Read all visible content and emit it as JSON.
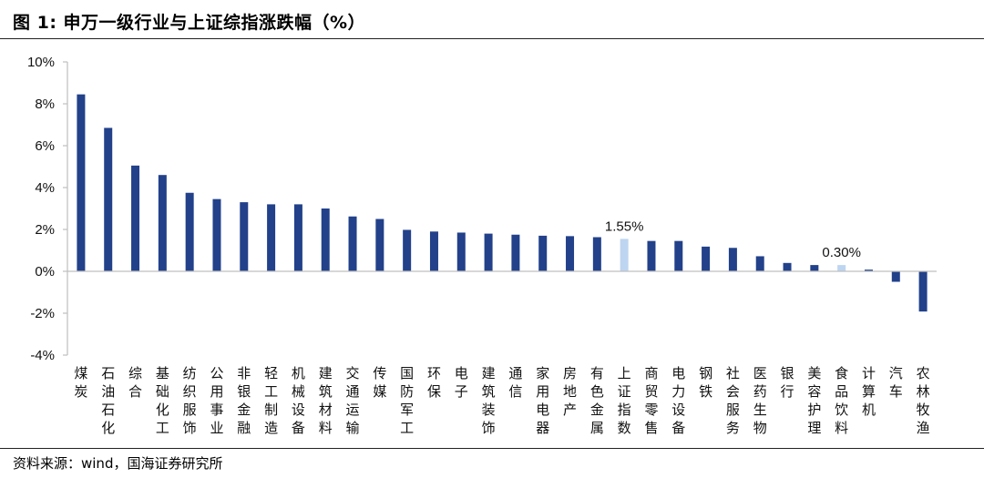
{
  "title": "图 1:  申万一级行业与上证综指涨跌幅（%）",
  "source": "资料来源：wind，国海证券研究所",
  "colors": {
    "bar": "#22418A",
    "highlight": "#BDD5F0",
    "axis": "#BFBFBF"
  },
  "chart_data": {
    "type": "bar",
    "title": "",
    "xlabel": "",
    "ylabel": "",
    "ylim": [
      -4,
      10
    ],
    "yticks": [
      10,
      8,
      6,
      4,
      2,
      0,
      -2,
      -4
    ],
    "ytick_labels": [
      "10%",
      "8%",
      "6%",
      "4%",
      "2%",
      "0%",
      "-2%",
      "-4%"
    ],
    "grid": false,
    "legend": "none",
    "categories": [
      "煤炭",
      "石油石化",
      "综合",
      "基础化工",
      "纺织服饰",
      "公用事业",
      "非银金融",
      "轻工制造",
      "机械设备",
      "建筑材料",
      "交通运输",
      "传媒",
      "国防军工",
      "环保",
      "电子",
      "建筑装饰",
      "通信",
      "家用电器",
      "房地产",
      "有色金属",
      "上证指数",
      "商贸零售",
      "电力设备",
      "钢铁",
      "社会服务",
      "医药生物",
      "银行",
      "美容护理",
      "食品饮料",
      "计算机",
      "汽车",
      "农林牧渔"
    ],
    "values": [
      8.45,
      6.85,
      5.05,
      4.6,
      3.75,
      3.45,
      3.3,
      3.2,
      3.2,
      3.0,
      2.62,
      2.5,
      1.98,
      1.9,
      1.85,
      1.8,
      1.75,
      1.7,
      1.68,
      1.63,
      1.55,
      1.45,
      1.45,
      1.18,
      1.12,
      0.72,
      0.4,
      0.3,
      0.3,
      0.08,
      -0.5,
      -1.92
    ],
    "highlight": [
      "上证指数",
      "食品饮料"
    ],
    "data_labels": [
      {
        "category": "上证指数",
        "text": "1.55%"
      },
      {
        "category": "食品饮料",
        "text": "0.30%"
      }
    ]
  }
}
